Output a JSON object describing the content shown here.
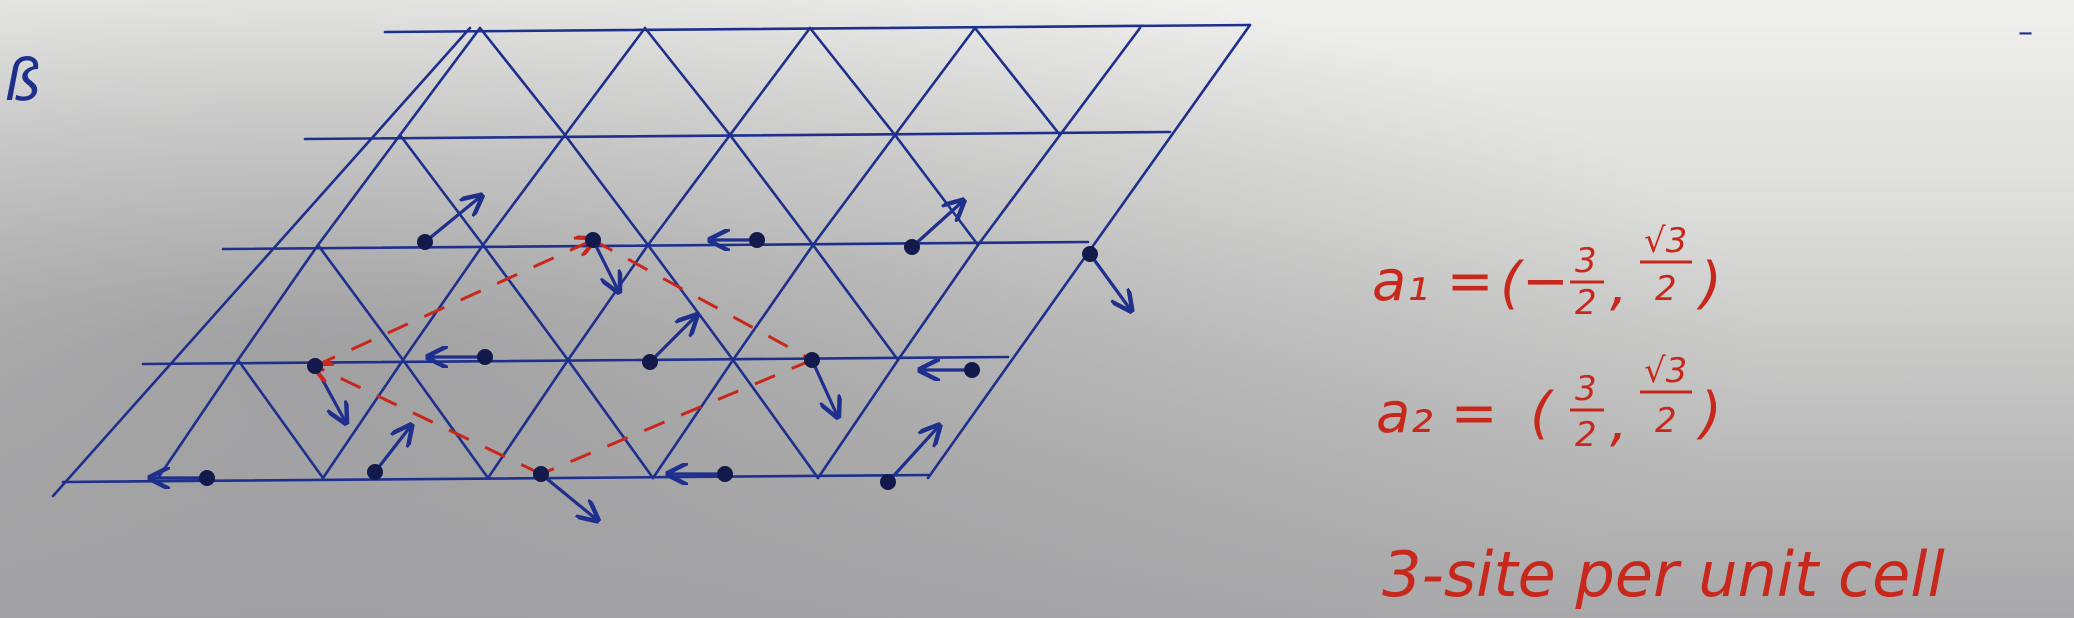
{
  "photo": {
    "subject": "hand-drawn triangular lattice",
    "colors": {
      "paper_light": "#ededeb",
      "paper_shadow": "#9a9a9c",
      "ink_blue": "#1e2f8c",
      "ink_red": "#c8281c"
    },
    "corner_mark": "ß",
    "a1": {
      "lhs": "a₁ =",
      "open": "(",
      "neg": "−",
      "x_num": "3",
      "x_den": "2",
      "comma": ",",
      "y_num": "√3",
      "y_den": "2",
      "close": ")"
    },
    "a2": {
      "lhs": "a₂ =",
      "open": "(",
      "x_num": "3",
      "x_den": "2",
      "comma": ",",
      "y_num": "√3",
      "y_den": "2",
      "close": ")"
    },
    "note": "3-site per unit cell"
  }
}
